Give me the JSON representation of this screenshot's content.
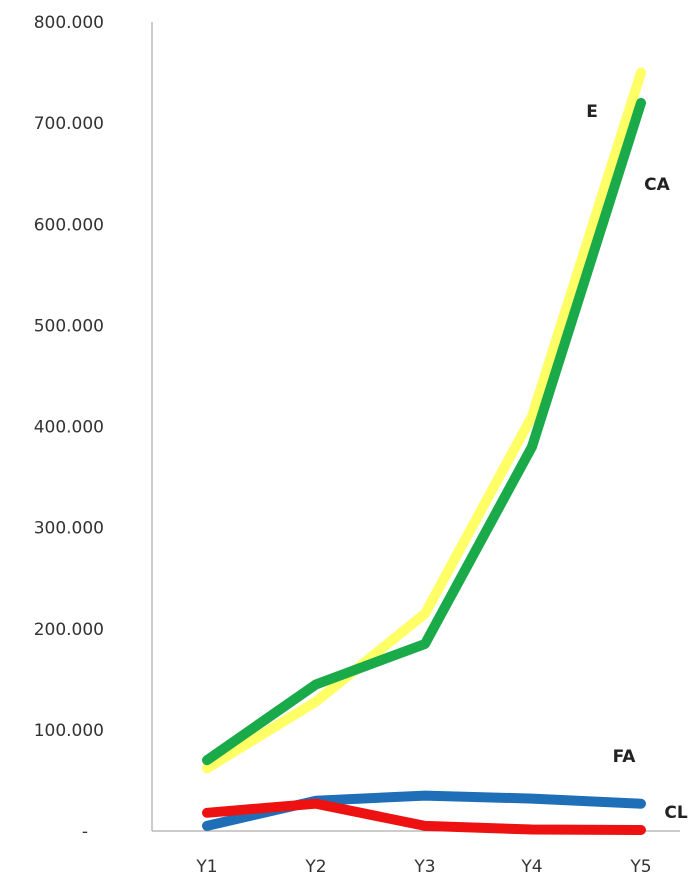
{
  "chart_data": {
    "type": "line",
    "title": "",
    "xlabel": "",
    "ylabel": "",
    "categories": [
      "Y1",
      "Y2",
      "Y3",
      "Y4",
      "Y5"
    ],
    "ylim": [
      0,
      800000
    ],
    "y_ticks": [
      0,
      100000,
      200000,
      300000,
      400000,
      500000,
      600000,
      700000,
      800000
    ],
    "y_tick_labels": [
      "-",
      "100.000",
      "200.000",
      "300.000",
      "400.000",
      "500.000",
      "600.000",
      "700.000",
      "800.000"
    ],
    "grid": false,
    "legend": "none",
    "series": [
      {
        "name": "E",
        "color": "#ffff66",
        "values": [
          62000,
          128000,
          215000,
          410000,
          750000
        ]
      },
      {
        "name": "CA",
        "color": "#1aaa4a",
        "values": [
          70000,
          145000,
          185000,
          380000,
          720000
        ]
      },
      {
        "name": "FA",
        "color": "#1e6fb8",
        "values": [
          5000,
          30000,
          35000,
          32000,
          27000
        ]
      },
      {
        "name": "CL",
        "color": "#ee1111",
        "values": [
          18000,
          27000,
          5000,
          1500,
          1000
        ]
      }
    ]
  }
}
